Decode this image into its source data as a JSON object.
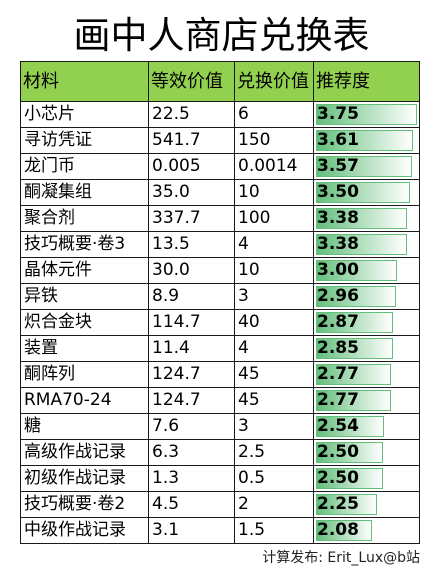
{
  "chart_data": {
    "type": "table",
    "title": "画中人商店兑换表",
    "columns": [
      "材料",
      "等效价值",
      "兑换价值",
      "推荐度"
    ],
    "rows": [
      [
        "小芯片",
        "22.5",
        "6",
        "3.75"
      ],
      [
        "寻访凭证",
        "541.7",
        "150",
        "3.61"
      ],
      [
        "龙门币",
        "0.005",
        "0.0014",
        "3.57"
      ],
      [
        "酮凝集组",
        "35.0",
        "10",
        "3.50"
      ],
      [
        "聚合剂",
        "337.7",
        "100",
        "3.38"
      ],
      [
        "技巧概要·卷3",
        "13.5",
        "4",
        "3.38"
      ],
      [
        "晶体元件",
        "30.0",
        "10",
        "3.00"
      ],
      [
        "异铁",
        "8.9",
        "3",
        "2.96"
      ],
      [
        "炽合金块",
        "114.7",
        "40",
        "2.87"
      ],
      [
        "装置",
        "11.4",
        "4",
        "2.85"
      ],
      [
        "酮阵列",
        "124.7",
        "45",
        "2.77"
      ],
      [
        "RMA70-24",
        "124.7",
        "45",
        "2.77"
      ],
      [
        "糖",
        "7.6",
        "3",
        "2.54"
      ],
      [
        "高级作战记录",
        "6.3",
        "2.5",
        "2.50"
      ],
      [
        "初级作战记录",
        "1.3",
        "0.5",
        "2.50"
      ],
      [
        "技巧概要·卷2",
        "4.5",
        "2",
        "2.25"
      ],
      [
        "中级作战记录",
        "3.1",
        "1.5",
        "2.08"
      ]
    ]
  },
  "footer": "计算发布: Erit_Lux@b站",
  "colors": {
    "header_bg": "#92D050",
    "data_bar": "#63BE7B"
  }
}
